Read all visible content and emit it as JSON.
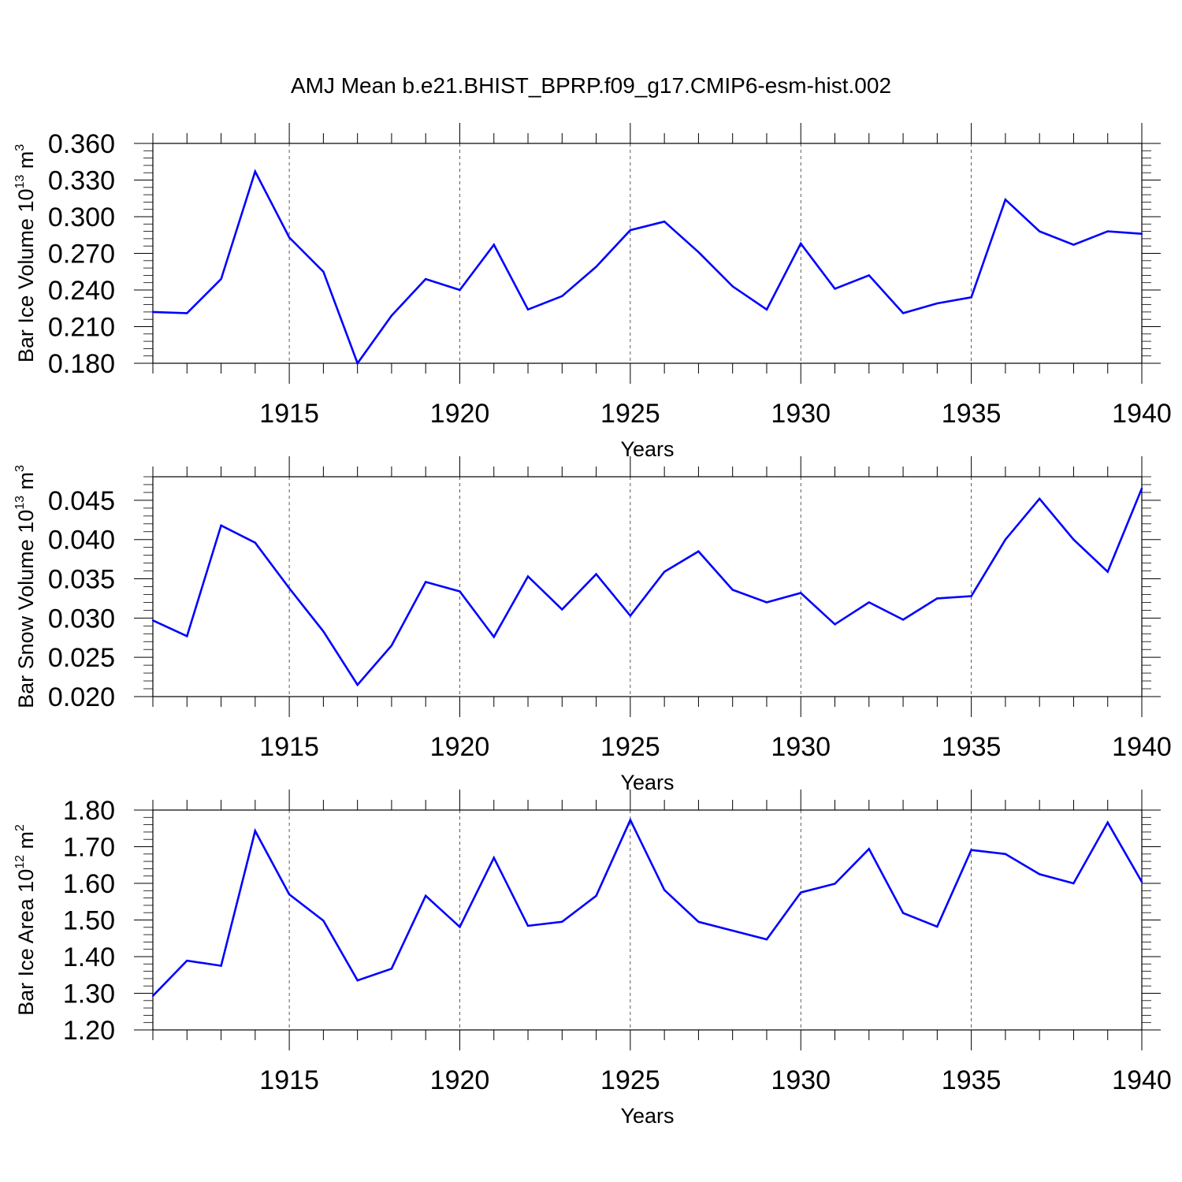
{
  "title": "AMJ Mean b.e21.BHIST_BPRP.f09_g17.CMIP6-esm-hist.002",
  "line_color": "#0000ff",
  "chart_data": [
    {
      "type": "line",
      "ylabel": {
        "text": "Bar Ice Volume 10",
        "exp": "13",
        "unit": " m",
        "unit_exp": "3"
      },
      "xlabel": "Years",
      "xlim": [
        1911,
        1940
      ],
      "ylim": [
        0.18,
        0.36
      ],
      "yticks": [
        "0.180",
        "0.210",
        "0.240",
        "0.270",
        "0.300",
        "0.330",
        "0.360"
      ],
      "xticks": [
        "1915",
        "1920",
        "1925",
        "1930",
        "1935",
        "1940"
      ],
      "grid": "dashed vertical at major x ticks",
      "series": [
        {
          "x": [
            1911,
            1912,
            1913,
            1914,
            1915,
            1916,
            1917,
            1918,
            1919,
            1920,
            1921,
            1922,
            1923,
            1924,
            1925,
            1926,
            1927,
            1928,
            1929,
            1930,
            1931,
            1932,
            1933,
            1934,
            1935,
            1936,
            1937,
            1938,
            1939,
            1940
          ],
          "values": [
            0.222,
            0.221,
            0.249,
            0.337,
            0.283,
            0.255,
            0.18,
            0.219,
            0.249,
            0.24,
            0.277,
            0.224,
            0.235,
            0.259,
            0.289,
            0.296,
            0.271,
            0.243,
            0.224,
            0.278,
            0.241,
            0.252,
            0.221,
            0.229,
            0.234,
            0.314,
            0.288,
            0.277,
            0.288,
            0.286
          ]
        }
      ]
    },
    {
      "type": "line",
      "ylabel": {
        "text": "Bar Snow Volume 10",
        "exp": "13",
        "unit": " m",
        "unit_exp": "3"
      },
      "xlabel": "Years",
      "xlim": [
        1911,
        1940
      ],
      "ylim": [
        0.02,
        0.048
      ],
      "yticks": [
        "0.020",
        "0.025",
        "0.030",
        "0.035",
        "0.040",
        "0.045"
      ],
      "xticks": [
        "1915",
        "1920",
        "1925",
        "1930",
        "1935",
        "1940"
      ],
      "grid": "dashed vertical at major x ticks",
      "series": [
        {
          "x": [
            1911,
            1912,
            1913,
            1914,
            1915,
            1916,
            1917,
            1918,
            1919,
            1920,
            1921,
            1922,
            1923,
            1924,
            1925,
            1926,
            1927,
            1928,
            1929,
            1930,
            1931,
            1932,
            1933,
            1934,
            1935,
            1936,
            1937,
            1938,
            1939,
            1940
          ],
          "values": [
            0.0297,
            0.0277,
            0.0418,
            0.0396,
            0.0338,
            0.0283,
            0.0215,
            0.0265,
            0.0346,
            0.0334,
            0.0276,
            0.0353,
            0.0311,
            0.0356,
            0.0303,
            0.0359,
            0.0385,
            0.0336,
            0.032,
            0.0332,
            0.0292,
            0.032,
            0.0298,
            0.0325,
            0.0328,
            0.04,
            0.0452,
            0.04,
            0.0359,
            0.0465
          ]
        }
      ]
    },
    {
      "type": "line",
      "ylabel": {
        "text": "Bar Ice Area 10",
        "exp": "12",
        "unit": " m",
        "unit_exp": "2"
      },
      "xlabel": "Years",
      "xlim": [
        1911,
        1940
      ],
      "ylim": [
        1.2,
        1.8
      ],
      "yticks": [
        "1.20",
        "1.30",
        "1.40",
        "1.50",
        "1.60",
        "1.70",
        "1.80"
      ],
      "xticks": [
        "1915",
        "1920",
        "1925",
        "1930",
        "1935",
        "1940"
      ],
      "grid": "dashed vertical at major x ticks",
      "series": [
        {
          "x": [
            1911,
            1912,
            1913,
            1914,
            1915,
            1916,
            1917,
            1918,
            1919,
            1920,
            1921,
            1922,
            1923,
            1924,
            1925,
            1926,
            1927,
            1928,
            1929,
            1930,
            1931,
            1932,
            1933,
            1934,
            1935,
            1936,
            1937,
            1938,
            1939,
            1940
          ],
          "values": [
            1.293,
            1.389,
            1.375,
            1.743,
            1.57,
            1.498,
            1.335,
            1.367,
            1.566,
            1.481,
            1.67,
            1.484,
            1.495,
            1.566,
            1.773,
            1.582,
            1.495,
            1.471,
            1.447,
            1.575,
            1.599,
            1.694,
            1.519,
            1.482,
            1.691,
            1.68,
            1.625,
            1.6,
            1.766,
            1.604
          ]
        }
      ]
    }
  ]
}
